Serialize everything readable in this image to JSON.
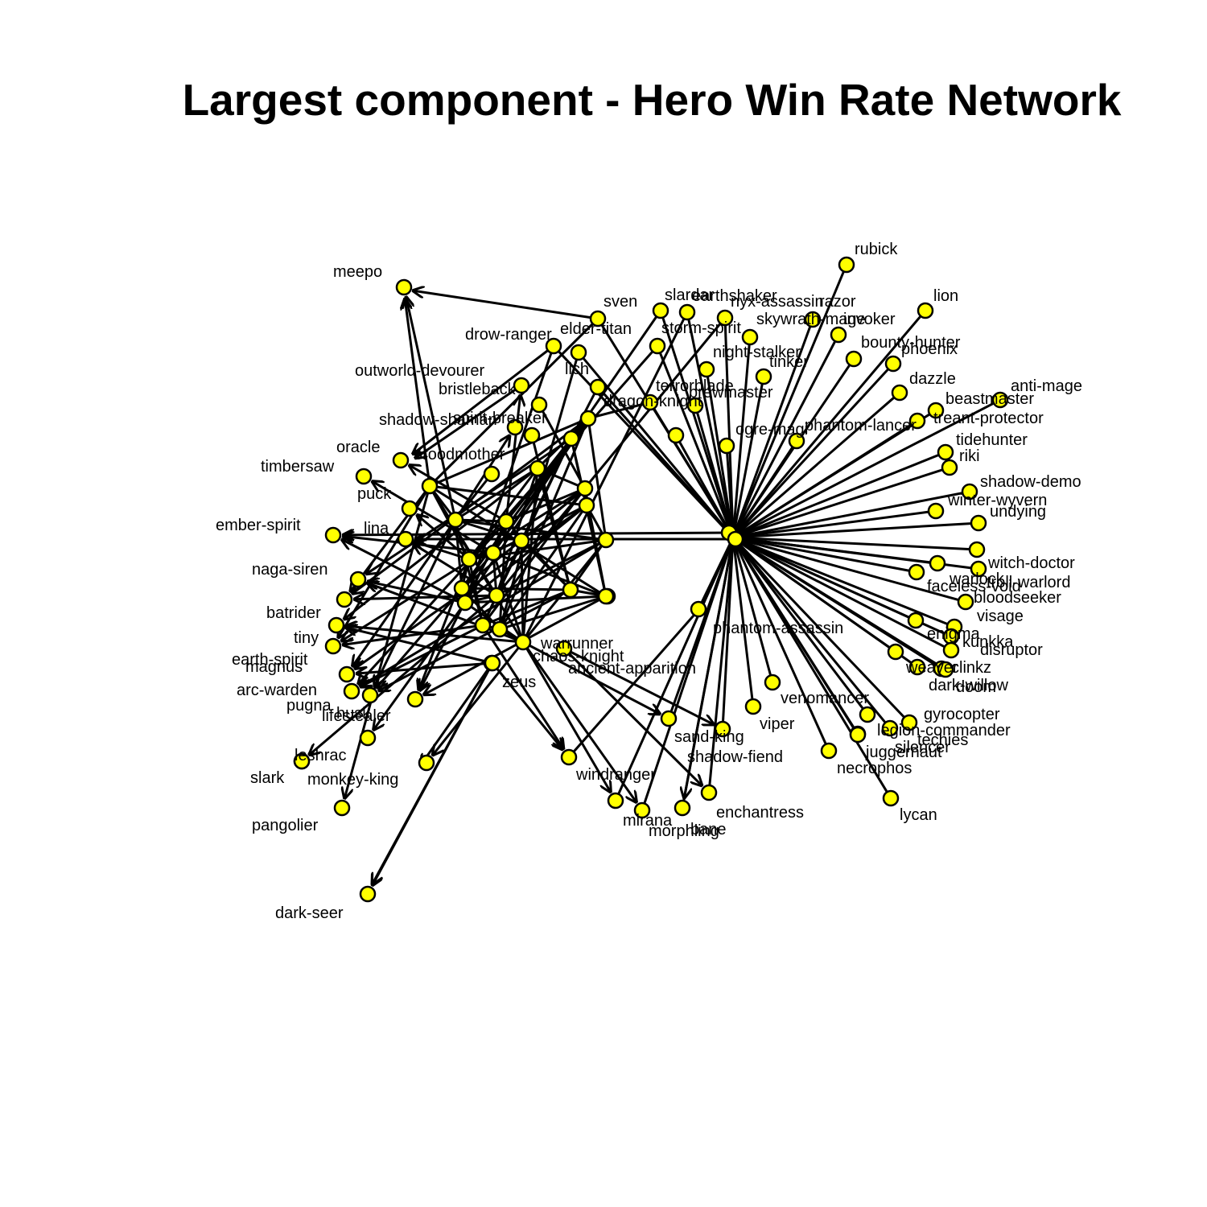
{
  "title": "Largest component - Hero Win Rate Network",
  "colors": {
    "node_fill": "#ffff00",
    "node_stroke": "#000000",
    "edge": "#000000",
    "background": "#ffffff"
  },
  "labels": {
    "rubick": "rubick",
    "meepo": "meepo",
    "sven": "sven",
    "slardar": "slardar",
    "earthshaker": "earthshaker",
    "nyx": "nyx-assassin",
    "razor": "razor",
    "lion": "lion",
    "invoker": "invoker",
    "skywrath": "skywrath-mage",
    "drow": "drow-ranger",
    "elder": "elder-titan",
    "storm": "storm-spirit",
    "bounty": "bounty-hunter",
    "phoenix": "phoenix",
    "outworld": "outworld-devourer",
    "night": "night-stalker",
    "tinker": "tinker",
    "lich": "lich",
    "dazzle": "dazzle",
    "anti": "anti-mage",
    "bristleback": "bristleback",
    "terror": "terrorblade",
    "brew": "brewmaster",
    "beast": "beastmaster",
    "treant": "treant-protector",
    "shadowshaman": "shadow-shaman",
    "spirit": "spirit-breaker",
    "dragon": "dragon-knight",
    "ogre": "ogre-magi",
    "phantomlancer": "phantom-lancer",
    "tide": "tidehunter",
    "riki": "riki",
    "oracle": "oracle",
    "broodmother": "broodmother",
    "timbersaw": "timbersaw",
    "puck": "puck",
    "shadowdemon": "shadow-demo",
    "winter": "winter-wyvern",
    "undying": "undying",
    "ember": "ember-spirit",
    "lina": "lina",
    "witch": "witch-doctor",
    "warlock": "warlock",
    "troll": "troll-warlord",
    "faceless": "faceless-void",
    "bloodseeker": "bloodseeker",
    "naga": "naga-siren",
    "batrider": "batrider",
    "visage": "visage",
    "phantomassassin": "phantom-assassin",
    "enigma": "enigma",
    "kunkka": "kunkka",
    "tiny": "tiny",
    "disruptor": "disruptor",
    "earthspirit": "earth-spirit",
    "magnus": "magnus",
    "warrunner": "warrunner",
    "chaos": "chaos-knight",
    "ancient": "ancient-apparition",
    "weaver": "weaver",
    "clinkz": "clinkz",
    "darkwillow": "dark-willow",
    "doom": "doom",
    "arc": "arc-warden",
    "zeus": "zeus",
    "pugna": "pugna",
    "husk": "husk",
    "lifestealer": "lifestealer",
    "venomancer": "venomancer",
    "gyrocopter": "gyrocopter",
    "viper": "viper",
    "sandking": "sand-king",
    "legion": "legion-commander",
    "techies": "techies",
    "shadowfiend": "shadow-fiend",
    "silencer": "silencer",
    "juggernaut": "juggernaut",
    "leshrac": "leshrac",
    "necrophos": "necrophos",
    "slark": "slark",
    "monkey": "monkey-king",
    "windranger": "windranger",
    "enchantress": "enchantress",
    "pangolier": "pangolier",
    "mirana": "mirana",
    "bane": "bane",
    "morphling": "morphling",
    "lycan": "lycan",
    "darkseer": "dark-seer"
  }
}
